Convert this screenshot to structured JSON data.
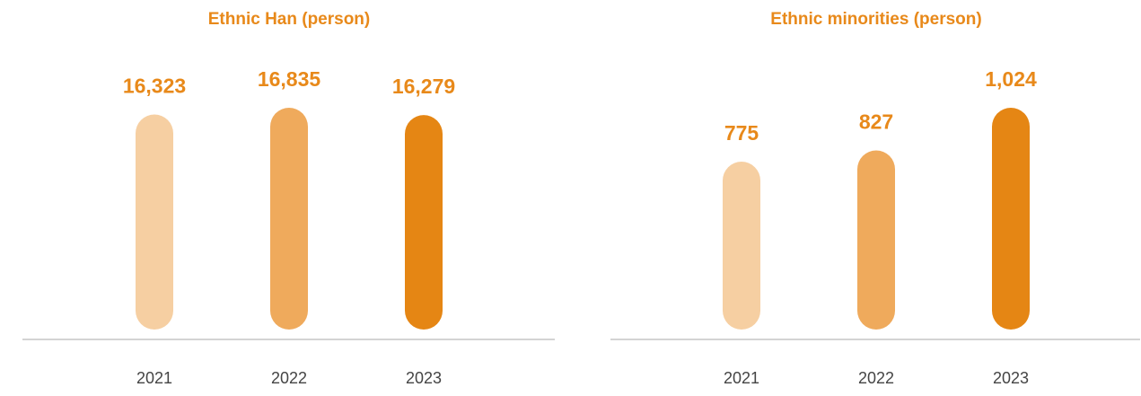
{
  "chart_data": [
    {
      "type": "bar",
      "title": "Ethnic Han (person)",
      "categories": [
        "2021",
        "2022",
        "2023"
      ],
      "values": [
        16323,
        16835,
        16279
      ],
      "value_labels": [
        "16,323",
        "16,835",
        "16,279"
      ],
      "colors": [
        "#f6cfa2",
        "#efaa5c",
        "#e58614"
      ]
    },
    {
      "type": "bar",
      "title": "Ethnic minorities (person)",
      "categories": [
        "2021",
        "2022",
        "2023"
      ],
      "values": [
        775,
        827,
        1024
      ],
      "value_labels": [
        "775",
        "827",
        "1,024"
      ],
      "colors": [
        "#f6cfa2",
        "#efaa5c",
        "#e58614"
      ]
    }
  ]
}
